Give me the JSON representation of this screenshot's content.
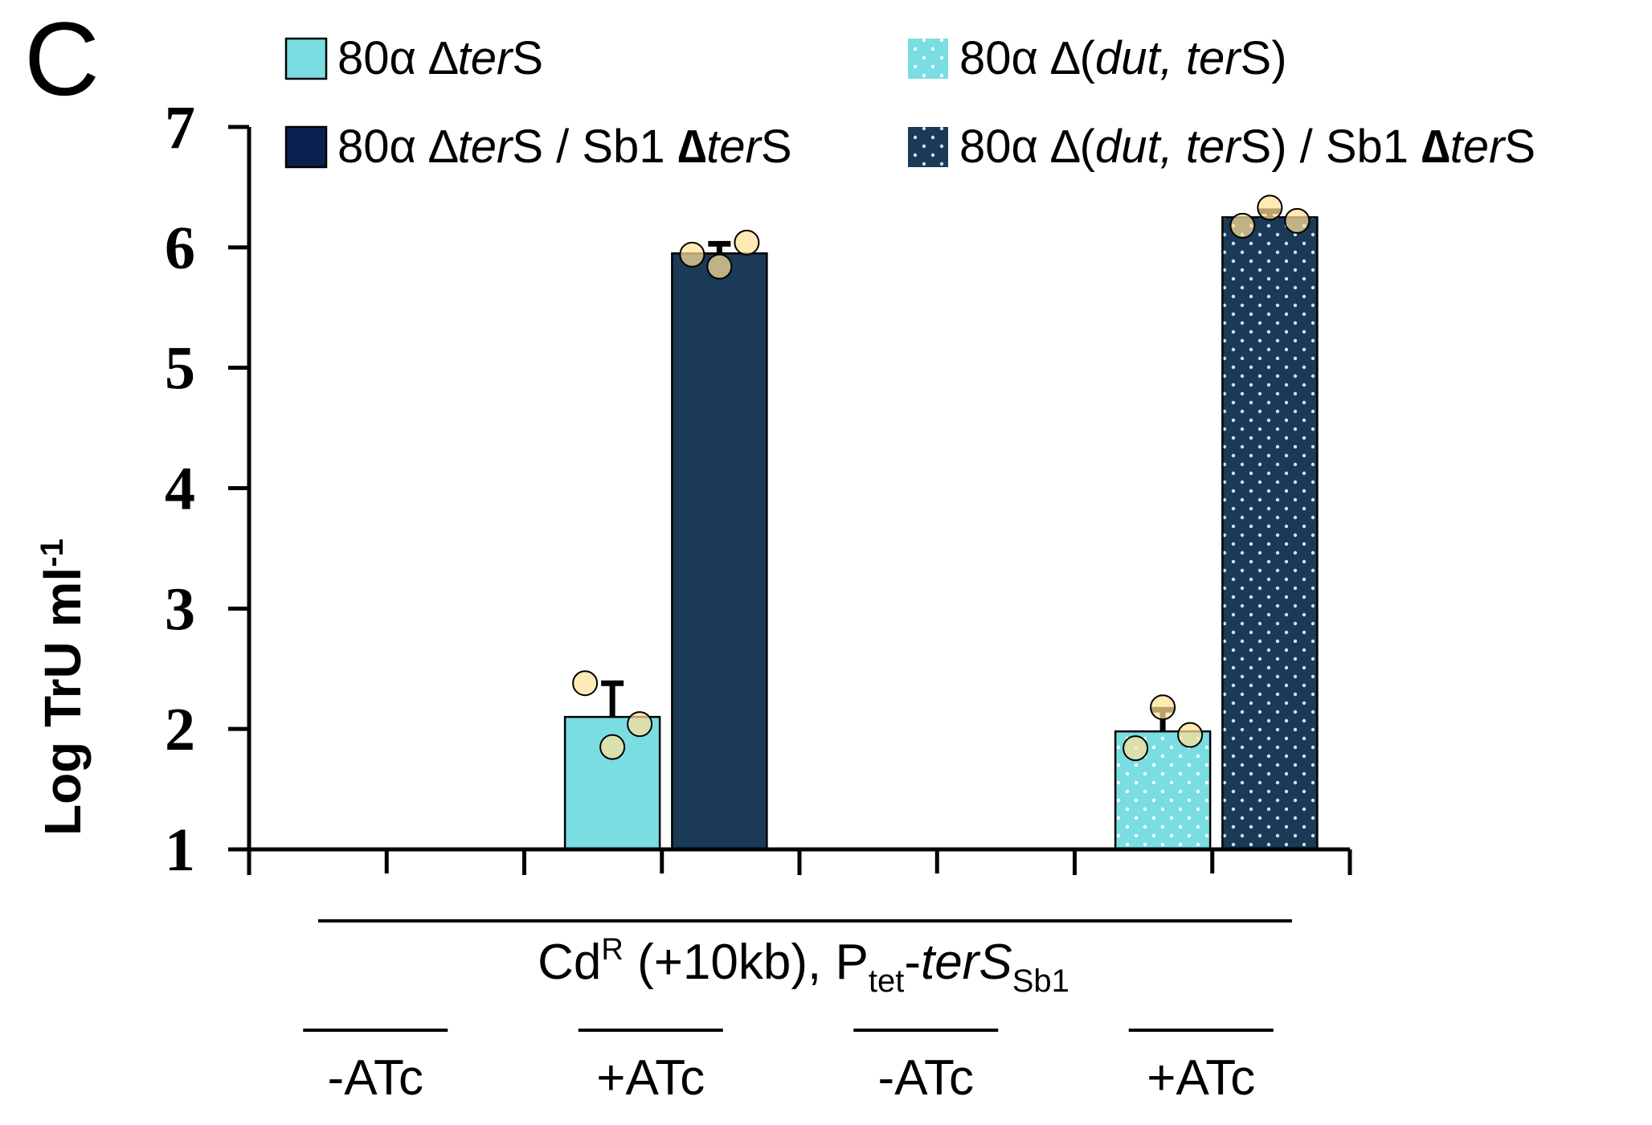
{
  "panel_label": "C",
  "colors": {
    "light": "#79dde2",
    "dark": "#1a3a57",
    "legend_dark": "#0b1f4f",
    "dot": "#ffe199",
    "axis": "#000000"
  },
  "legend": [
    {
      "pattern": "solid",
      "tone": "light",
      "parts": [
        {
          "t": "80α ∆"
        },
        {
          "t": "ter",
          "i": true
        },
        {
          "t": "S"
        }
      ]
    },
    {
      "pattern": "dots",
      "tone": "light",
      "parts": [
        {
          "t": "80α ∆("
        },
        {
          "t": "dut, ter",
          "i": true
        },
        {
          "t": "S)"
        }
      ]
    },
    {
      "pattern": "solid",
      "tone": "legend_dark",
      "parts": [
        {
          "t": "80α ∆"
        },
        {
          "t": "ter",
          "i": true
        },
        {
          "t": "S / Sb1 "
        },
        {
          "t": "∆",
          "b": true
        },
        {
          "t": "ter",
          "i": true
        },
        {
          "t": "S"
        }
      ]
    },
    {
      "pattern": "dots",
      "tone": "dark",
      "parts": [
        {
          "t": "80α ∆("
        },
        {
          "t": "dut, ter",
          "i": true
        },
        {
          "t": "S) / Sb1 "
        },
        {
          "t": "∆",
          "b": true
        },
        {
          "t": "ter",
          "i": true
        },
        {
          "t": "S"
        }
      ]
    }
  ],
  "chart_data": {
    "type": "bar",
    "ylabel": "Log TrU ml",
    "ylabel_sup": "-1",
    "ylim": [
      1,
      7
    ],
    "yticks": [
      "1",
      "2",
      "3",
      "4",
      "5",
      "6",
      "7"
    ],
    "groups": [
      {
        "label": "-ATc",
        "bars": [
          {
            "series": "80α ∆terS",
            "pattern": "solid",
            "tone": "light",
            "value": null
          },
          {
            "series": "80α ∆terS / Sb1 ∆terS",
            "pattern": "solid",
            "tone": "dark",
            "value": null
          }
        ]
      },
      {
        "label": "+ATc",
        "bars": [
          {
            "series": "80α ∆terS",
            "pattern": "solid",
            "tone": "light",
            "value": 2.1,
            "err": 0.28,
            "points": [
              2.38,
              1.85,
              2.04
            ]
          },
          {
            "series": "80α ∆terS / Sb1 ∆terS",
            "pattern": "solid",
            "tone": "dark",
            "value": 5.95,
            "err": 0.08,
            "points": [
              5.94,
              5.84,
              6.04
            ]
          }
        ]
      },
      {
        "label": "-ATc",
        "bars": [
          {
            "series": "80α ∆(dut, terS)",
            "pattern": "dots",
            "tone": "light",
            "value": null
          },
          {
            "series": "80α ∆(dut, terS) / Sb1 ∆terS",
            "pattern": "dots",
            "tone": "dark",
            "value": null
          }
        ]
      },
      {
        "label": "+ATc",
        "bars": [
          {
            "series": "80α ∆(dut, terS)",
            "pattern": "dots",
            "tone": "light",
            "value": 1.98,
            "err": 0.18,
            "points": [
              1.84,
              2.18,
              1.95
            ]
          },
          {
            "series": "80α ∆(dut, terS) / Sb1 ∆terS",
            "pattern": "dots",
            "tone": "dark",
            "value": 6.25,
            "err": 0.05,
            "points": [
              6.18,
              6.33,
              6.22
            ]
          }
        ]
      }
    ],
    "bracket": {
      "parts": [
        "Cd",
        "R",
        " (+10kb), P",
        "tet",
        "-",
        "terS",
        "Sb1"
      ]
    }
  }
}
